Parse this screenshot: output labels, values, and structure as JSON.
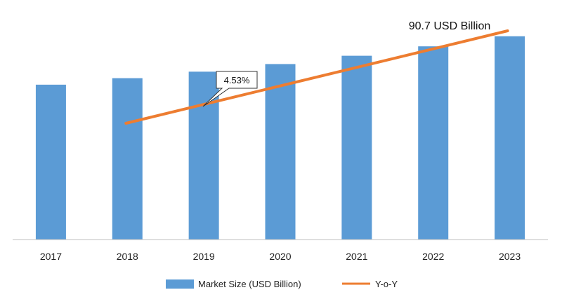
{
  "chart_data": {
    "type": "bar",
    "categories": [
      "2017",
      "2018",
      "2019",
      "2020",
      "2021",
      "2022",
      "2023"
    ],
    "series": [
      {
        "name": "Market Size (USD Billion)",
        "type": "bar",
        "color": "#5B9BD5",
        "values": [
          69.1,
          72.0,
          74.9,
          78.3,
          82.0,
          86.2,
          90.7
        ]
      },
      {
        "name": "Y-o-Y",
        "type": "line",
        "color": "#ED7D31",
        "start_category": "2018",
        "end_category": "2023"
      }
    ],
    "ylim": [
      0,
      100
    ],
    "annotations": {
      "yoy_callout": "4.53%",
      "end_value_label": "90.7 USD Billion"
    },
    "grid": false,
    "legend": "bottom-center"
  }
}
